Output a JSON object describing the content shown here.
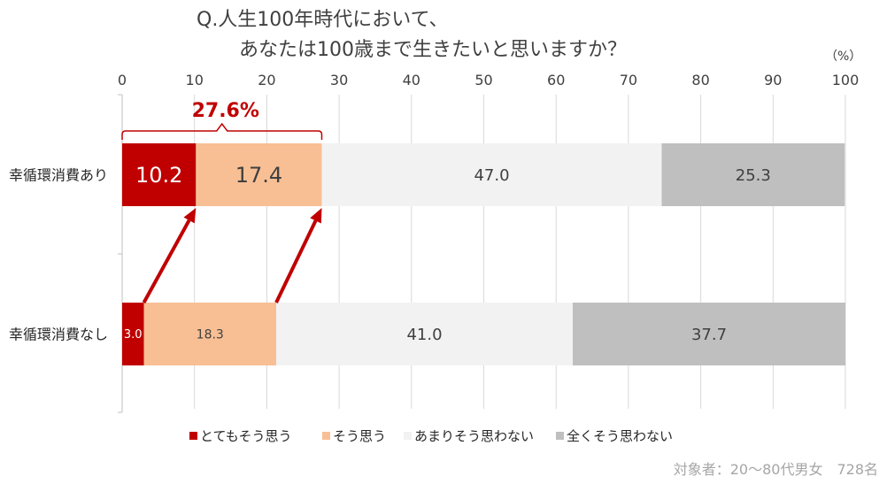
{
  "chart_data": {
    "type": "bar",
    "stacked": true,
    "orientation": "horizontal",
    "title_lines": [
      "Q.人生100年時代において、",
      "あなたは100歳まで生きたいと思いますか？"
    ],
    "unit_label": "（%）",
    "xlim": [
      0,
      100
    ],
    "x_ticks": [
      0,
      10,
      20,
      30,
      40,
      50,
      60,
      70,
      80,
      90,
      100
    ],
    "grid": true,
    "categories": [
      "幸循環消費あり",
      "幸循環消費なし"
    ],
    "series": [
      {
        "name": "とてもそう思う",
        "color": "#c00000",
        "label_color": "#ffffff",
        "values": [
          10.2,
          3.0
        ],
        "labels": [
          "10.2",
          "3.0"
        ]
      },
      {
        "name": "そう思う",
        "color": "#f8bf94",
        "label_color": "#404040",
        "values": [
          17.4,
          18.3
        ],
        "labels": [
          "17.4",
          "18.3"
        ]
      },
      {
        "name": "あまりそう思わない",
        "color": "#f2f2f2",
        "label_color": "#404040",
        "values": [
          47.0,
          41.0
        ],
        "labels": [
          "47.0",
          "41.0"
        ]
      },
      {
        "name": "全くそう思わない",
        "color": "#bfbfbf",
        "label_color": "#404040",
        "values": [
          25.3,
          37.7
        ],
        "labels": [
          "25.3",
          "37.7"
        ]
      }
    ],
    "annotation": {
      "text": "27.6%",
      "color": "#c00000",
      "value": 27.6
    },
    "legend_position": "bottom",
    "footnote": "対象者：20～80代男女　728名"
  }
}
